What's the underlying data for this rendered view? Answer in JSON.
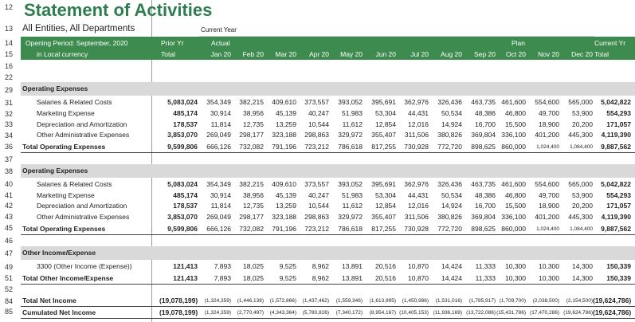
{
  "title": "Statement of Activities",
  "subtitle": "All Entities, All Departments",
  "current_year_label": "Current Year",
  "row_numbers": [
    "12",
    "13",
    "14",
    "15",
    "16",
    "22",
    "29",
    "31",
    "32",
    "33",
    "34",
    "36",
    "37",
    "38",
    "40",
    "41",
    "42",
    "43",
    "45",
    "46",
    "47",
    "49",
    "51",
    "52",
    "84",
    "85"
  ],
  "header": {
    "line1_left": "Opening Period: September, 2020",
    "line2_left": "in Local currency",
    "prior_yr": "Prior Yr",
    "total": "Total",
    "actual": "Actual",
    "plan": "Plan",
    "current_yr": "Current Yr",
    "current_total": "Total",
    "months": [
      "Jan 20",
      "Feb 20",
      "Mar 20",
      "Apr 20",
      "May 20",
      "Jun 20",
      "Jul 20",
      "Aug 20",
      "Sep 20",
      "Oct 20",
      "Nov 20",
      "Dec 20"
    ]
  },
  "sections": [
    {
      "title": "Operating Expenses",
      "rows": [
        {
          "label": "Salaries & Related Costs",
          "prior": "5,083,024",
          "months": [
            "354,349",
            "382,215",
            "409,610",
            "373,557",
            "393,052",
            "395,691",
            "362,976",
            "326,436",
            "463,735",
            "461,600",
            "554,600",
            "565,000"
          ],
          "total": "5,042,822"
        },
        {
          "label": "Marketing Expense",
          "prior": "485,174",
          "months": [
            "30,914",
            "38,956",
            "45,139",
            "40,247",
            "51,983",
            "53,304",
            "44,431",
            "50,534",
            "48,386",
            "46,800",
            "49,700",
            "53,900"
          ],
          "total": "554,293"
        },
        {
          "label": "Depreciation and Amortization",
          "prior": "178,537",
          "months": [
            "11,814",
            "12,735",
            "13,259",
            "10,544",
            "11,612",
            "12,854",
            "12,016",
            "14,924",
            "16,700",
            "15,500",
            "18,900",
            "20,200"
          ],
          "total": "171,057"
        },
        {
          "label": "Other Administrative Expenses",
          "prior": "3,853,070",
          "months": [
            "269,049",
            "298,177",
            "323,188",
            "298,863",
            "329,972",
            "355,407",
            "311,506",
            "380,826",
            "369,804",
            "336,100",
            "401,200",
            "445,300"
          ],
          "total": "4,119,390"
        }
      ],
      "total": {
        "label": "Total Operating Expenses",
        "prior": "9,599,806",
        "months": [
          "666,126",
          "732,082",
          "791,196",
          "723,212",
          "786,618",
          "817,255",
          "730,928",
          "772,720",
          "898,625",
          "860,000",
          "1,024,400",
          "1,084,400"
        ],
        "total": "9,887,562"
      }
    },
    {
      "title": "Operating Expenses",
      "rows": [
        {
          "label": "Salaries & Related Costs",
          "prior": "5,083,024",
          "months": [
            "354,349",
            "382,215",
            "409,610",
            "373,557",
            "393,052",
            "395,691",
            "362,976",
            "326,436",
            "463,735",
            "461,600",
            "554,600",
            "565,000"
          ],
          "total": "5,042,822"
        },
        {
          "label": "Marketing Expense",
          "prior": "485,174",
          "months": [
            "30,914",
            "38,956",
            "45,139",
            "40,247",
            "51,983",
            "53,304",
            "44,431",
            "50,534",
            "48,386",
            "46,800",
            "49,700",
            "53,900"
          ],
          "total": "554,293"
        },
        {
          "label": "Depreciation and Amortization",
          "prior": "178,537",
          "months": [
            "11,814",
            "12,735",
            "13,259",
            "10,544",
            "11,612",
            "12,854",
            "12,016",
            "14,924",
            "16,700",
            "15,500",
            "18,900",
            "20,200"
          ],
          "total": "171,057"
        },
        {
          "label": "Other Administrative Expenses",
          "prior": "3,853,070",
          "months": [
            "269,049",
            "298,177",
            "323,188",
            "298,863",
            "329,972",
            "355,407",
            "311,506",
            "380,826",
            "369,804",
            "336,100",
            "401,200",
            "445,300"
          ],
          "total": "4,119,390"
        }
      ],
      "total": {
        "label": "Total Operating Expenses",
        "prior": "9,599,806",
        "months": [
          "666,126",
          "732,082",
          "791,196",
          "723,212",
          "786,618",
          "817,255",
          "730,928",
          "772,720",
          "898,625",
          "860,000",
          "1,024,400",
          "1,084,400"
        ],
        "total": "9,887,562"
      }
    },
    {
      "title": "Other Income/Expense",
      "rows": [
        {
          "label": "3300 (Other Income (Expense))",
          "prior": "121,413",
          "months": [
            "7,893",
            "18,025",
            "9,525",
            "8,962",
            "13,891",
            "20,516",
            "10,870",
            "14,424",
            "11,333",
            "10,300",
            "10,300",
            "14,300"
          ],
          "total": "150,339"
        }
      ],
      "total": {
        "label": "Total Other Income/Expense",
        "prior": "121,413",
        "months": [
          "7,893",
          "18,025",
          "9,525",
          "8,962",
          "13,891",
          "20,516",
          "10,870",
          "14,424",
          "11,333",
          "10,300",
          "10,300",
          "14,300"
        ],
        "total": "150,339"
      }
    }
  ],
  "net_income": {
    "label": "Total Net Income",
    "prior": "(19,078,199)",
    "months": [
      "(1,324,359)",
      "(1,446,138)",
      "(1,572,866)",
      "(1,437,462)",
      "(1,559,346)",
      "(1,613,995)",
      "(1,450,986)",
      "(1,531,016)",
      "(1,785,917)",
      "(1,709,700)",
      "(2,038,500)",
      "(2,154,500)"
    ],
    "total": "(19,624,786)"
  },
  "cumulative": {
    "label": "Cumulated Net Income",
    "prior": "(19,078,199)",
    "months": [
      "(1,324,359)",
      "(2,770,497)",
      "(4,343,364)",
      "(5,780,826)",
      "(7,340,172)",
      "(8,954,167)",
      "(10,405,153)",
      "(11,936,169)",
      "(13,722,086)",
      "(15,431,786)",
      "(17,470,286)",
      "(19,624,786)"
    ],
    "total": "(19,624,786)"
  }
}
